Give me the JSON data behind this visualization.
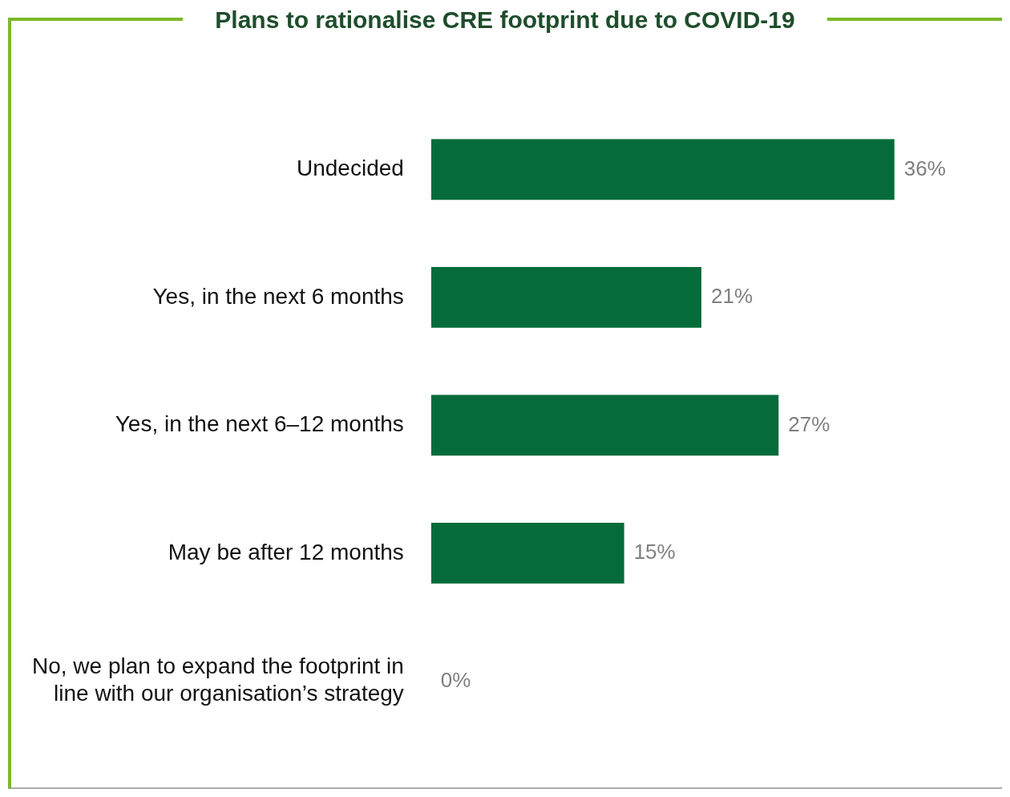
{
  "chart_data": {
    "type": "bar",
    "orientation": "horizontal",
    "title": "Plans to rationalise CRE footprint due to COVID-19",
    "categories": [
      "Undecided",
      "Yes, in the next 6 months",
      "Yes, in the next 6–12 months",
      "May be after 12 months",
      "No, we plan to expand the footprint in line with our organisation’s strategy"
    ],
    "values": [
      36,
      21,
      27,
      15,
      0
    ],
    "value_labels": [
      "36%",
      "21%",
      "27%",
      "15%",
      "0%"
    ],
    "color": "#056b3a",
    "tick_labels": "y",
    "legend": false
  }
}
